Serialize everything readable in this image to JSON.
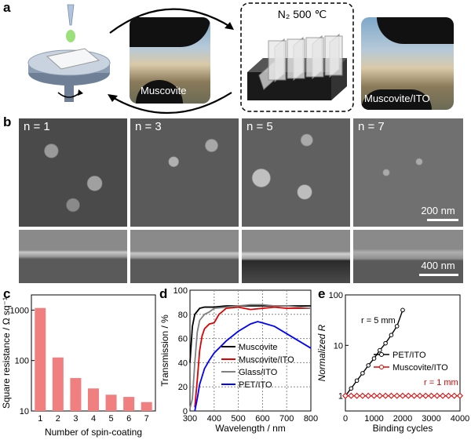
{
  "panel_labels": {
    "a": "a",
    "b": "b",
    "c": "c",
    "d": "d",
    "e": "e"
  },
  "panel_a": {
    "furnace_label": "N₂ 500 ℃",
    "photo1_label": "Muscovite",
    "photo2_label": "Muscovite/ITO"
  },
  "panel_b": {
    "labels": [
      "n = 1",
      "n = 3",
      "n = 5",
      "n = 7"
    ],
    "scale_top": "200 nm",
    "scale_bottom": "400 nm"
  },
  "chart_data": [
    {
      "type": "bar",
      "xlabel": "Number of spin-coating",
      "ylabel": "Square resistance / Ω sq⁻¹",
      "categories": [
        "1",
        "2",
        "3",
        "4",
        "5",
        "6",
        "7"
      ],
      "values": [
        1100,
        115,
        45,
        28,
        21,
        19,
        15
      ],
      "yscale": "log",
      "ylim": [
        10,
        2000
      ],
      "yticks": [
        "10",
        "100",
        "1000"
      ],
      "color": "#f08080"
    },
    {
      "type": "line",
      "xlabel": "Wavelength / nm",
      "ylabel": "Transmission / %",
      "xlim": [
        300,
        800
      ],
      "ylim": [
        0,
        100
      ],
      "xticks": [
        "300",
        "400",
        "500",
        "600",
        "700",
        "800"
      ],
      "yticks": [
        "0",
        "20",
        "40",
        "60",
        "80",
        "100"
      ],
      "legend_position": "lower-left",
      "grid": true,
      "series": [
        {
          "name": "Muscovite",
          "color": "#000000",
          "x": [
            300,
            310,
            320,
            340,
            360,
            380,
            400,
            450,
            500,
            550,
            600,
            650,
            700,
            750,
            800
          ],
          "y": [
            40,
            70,
            80,
            85,
            86,
            86,
            86,
            87,
            87,
            87,
            87,
            87,
            87,
            87,
            87
          ]
        },
        {
          "name": "Muscovite/ITO",
          "color": "#e00000",
          "x": [
            320,
            330,
            340,
            350,
            360,
            380,
            400,
            420,
            450,
            500,
            550,
            600,
            650,
            700,
            750,
            800
          ],
          "y": [
            3,
            25,
            50,
            62,
            68,
            72,
            73,
            80,
            85,
            86,
            84,
            85,
            86,
            85,
            85,
            85
          ]
        },
        {
          "name": "Glass/ITO",
          "color": "#808080",
          "x": [
            300,
            310,
            320,
            330,
            340,
            360,
            380,
            400,
            450,
            500,
            550,
            600,
            650,
            700,
            750,
            800
          ],
          "y": [
            2,
            10,
            40,
            65,
            75,
            80,
            82,
            85,
            86,
            87,
            88,
            88,
            87,
            87,
            86,
            85
          ]
        },
        {
          "name": "PET/ITO",
          "color": "#0000ff",
          "x": [
            320,
            330,
            340,
            360,
            380,
            400,
            450,
            500,
            550,
            580,
            600,
            650,
            700,
            750,
            800
          ],
          "y": [
            0,
            10,
            22,
            35,
            42,
            48,
            58,
            66,
            72,
            74,
            73,
            70,
            64,
            58,
            52
          ]
        }
      ]
    },
    {
      "type": "line",
      "xlabel": "Binding cycles",
      "ylabel": "Normalized R",
      "xlim": [
        0,
        4000
      ],
      "ylim": [
        0.5,
        100
      ],
      "yscale": "log",
      "xticks": [
        "0",
        "1000",
        "2000",
        "3000",
        "4000"
      ],
      "yticks": [
        "1",
        "10",
        "100"
      ],
      "annotations": [
        "r = 5 mm",
        "r = 1 mm"
      ],
      "series": [
        {
          "name": "PET/ITO",
          "color": "#000000",
          "x": [
            0,
            200,
            400,
            600,
            800,
            1000,
            1200,
            1400,
            1600,
            1800,
            2000
          ],
          "y": [
            1,
            1.4,
            2,
            2.8,
            4,
            5.5,
            8,
            11,
            16,
            24,
            50
          ]
        },
        {
          "name": "Muscovite/ITO",
          "color": "#e00000",
          "x": [
            0,
            200,
            400,
            600,
            800,
            1000,
            1200,
            1400,
            1600,
            1800,
            2000,
            2200,
            2400,
            2600,
            2800,
            3000,
            3200,
            3400,
            3600,
            3800,
            4000
          ],
          "y": [
            1,
            1,
            1,
            1,
            1,
            1,
            1,
            1,
            1,
            1,
            1,
            1,
            1,
            1,
            1,
            1,
            1,
            1,
            1,
            1,
            1
          ]
        }
      ]
    }
  ]
}
